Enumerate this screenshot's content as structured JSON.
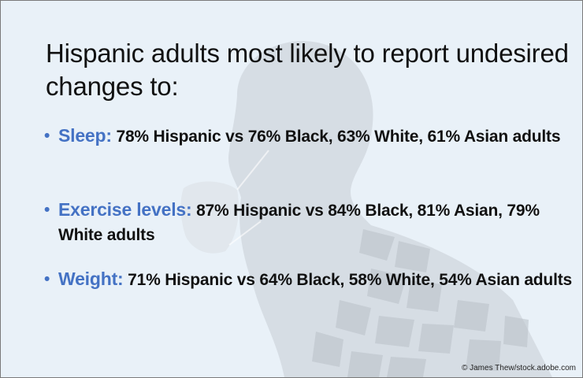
{
  "title": "Hispanic adults most likely to report undesired changes to:",
  "bullets": [
    {
      "term": "Sleep:",
      "text": "78% Hispanic vs 76% Black, 63% White, 61% Asian adults"
    },
    {
      "term": "Exercise levels:",
      "text": "87% Hispanic vs 84% Black, 81% Asian, 79% White adults"
    },
    {
      "term": "Weight:",
      "text": "71% Hispanic vs 64% Black, 58% White, 54% Asian adults"
    }
  ],
  "bullet_symbol": "•",
  "credit": "© James Thew/stock.adobe.com",
  "colors": {
    "accent": "#4472c4",
    "background": "#e9f1f8",
    "figure": "#c9cfd6"
  }
}
